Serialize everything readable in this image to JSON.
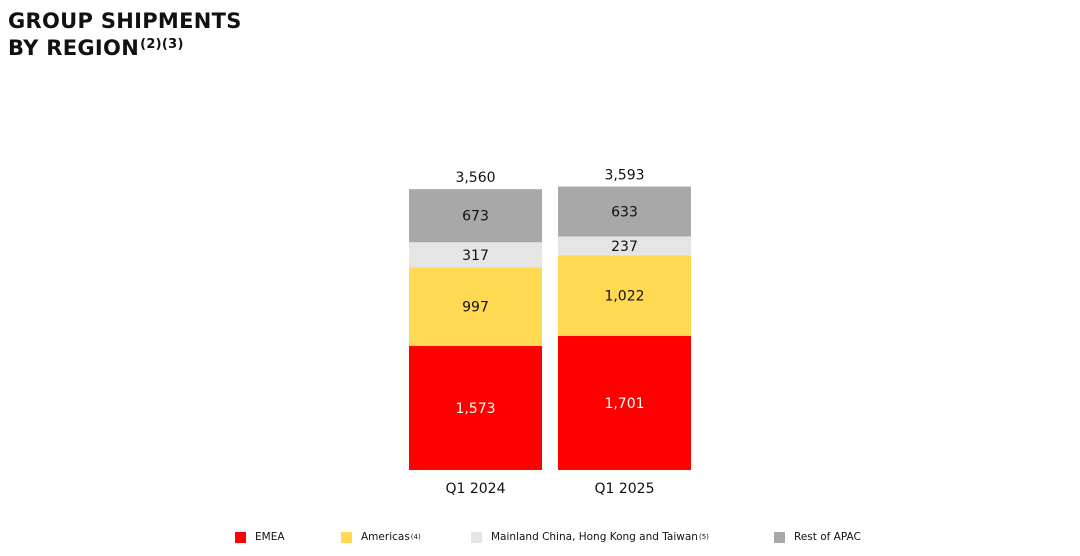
{
  "header": {
    "title_line1": "GROUP SHIPMENTS",
    "title_line2": "BY REGION",
    "title_notes": "(2)(3)"
  },
  "chart_data": {
    "type": "bar",
    "stacked": true,
    "categories": [
      "Q1 2024",
      "Q1 2025"
    ],
    "totals": [
      3560,
      3593
    ],
    "total_labels": [
      "3,560",
      "3,593"
    ],
    "ylim": [
      0,
      3600
    ],
    "grid": false,
    "legend_placement": "bottom",
    "series": [
      {
        "name": "EMEA",
        "values": [
          1573,
          1701
        ],
        "labels": [
          "1,573",
          "1,701"
        ],
        "color": "#ff0000",
        "label_color": "#ffffff"
      },
      {
        "name": "Americas",
        "note": "(4)",
        "values": [
          997,
          1022
        ],
        "labels": [
          "997",
          "1,022"
        ],
        "color": "#ffd952",
        "label_color": "#111111"
      },
      {
        "name": "Mainland China, Hong Kong and Taiwan",
        "note": "(5)",
        "values": [
          317,
          237
        ],
        "labels": [
          "317",
          "237"
        ],
        "color": "#e5e5e5",
        "label_color": "#111111"
      },
      {
        "name": "Rest of APAC",
        "values": [
          673,
          633
        ],
        "labels": [
          "673",
          "633"
        ],
        "color": "#a8a8a8",
        "label_color": "#111111"
      }
    ]
  }
}
